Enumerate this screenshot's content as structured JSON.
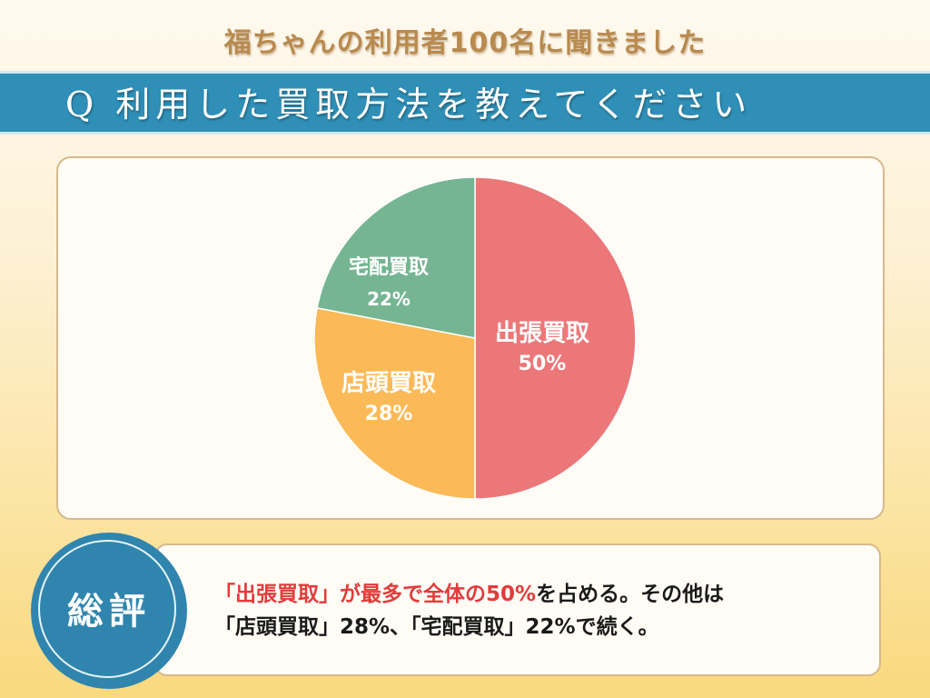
{
  "header": {
    "subtitle": "福ちゃんの利用者100名に聞きました",
    "question": "Q 利用した買取方法を教えてください"
  },
  "chart_data": {
    "type": "pie",
    "title": "Q 利用した買取方法を教えてください",
    "slices": [
      {
        "label": "出張買取",
        "value": 50,
        "display": "50%",
        "color": "#ec7778"
      },
      {
        "label": "店頭買取",
        "value": 28,
        "display": "28%",
        "color": "#fbba57"
      },
      {
        "label": "宅配買取",
        "value": 22,
        "display": "22%",
        "color": "#75b592"
      }
    ],
    "start": "top",
    "direction": "clockwise"
  },
  "summary": {
    "badge": "総評",
    "line1_red": "「出張買取」が最多で全体の50%",
    "line1_rest": "を占める。その他は",
    "line2": "「店頭買取」28%、「宅配買取」22%で続く。"
  }
}
